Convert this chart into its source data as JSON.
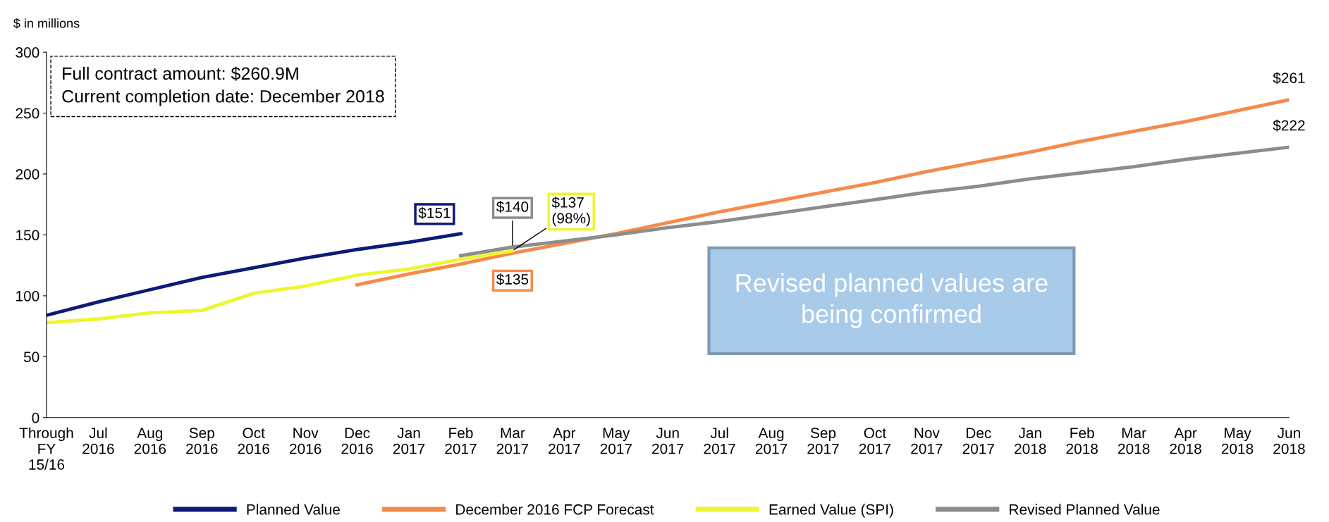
{
  "chart_data": {
    "type": "line",
    "ylabel": "$ in millions",
    "categories": [
      "Through\nFY\n15/16",
      "Jul\n2016",
      "Aug\n2016",
      "Sep\n2016",
      "Oct\n2016",
      "Nov\n2016",
      "Dec\n2016",
      "Jan\n2017",
      "Feb\n2017",
      "Mar\n2017",
      "Apr\n2017",
      "May\n2017",
      "Jun\n2017",
      "Jul\n2017",
      "Aug\n2017",
      "Sep\n2017",
      "Oct\n2017",
      "Nov\n2017",
      "Dec\n2017",
      "Jan\n2018",
      "Feb\n2018",
      "Mar\n2018",
      "Apr\n2018",
      "May\n2018",
      "Jun\n2018"
    ],
    "series": [
      {
        "name": "Planned Value",
        "color": "#0d1a78",
        "values": [
          84,
          95,
          105,
          115,
          123,
          131,
          138,
          144,
          151,
          null,
          null,
          null,
          null,
          null,
          null,
          null,
          null,
          null,
          null,
          null,
          null,
          null,
          null,
          null,
          null
        ],
        "value_labels": [
          null,
          null,
          null,
          null,
          null,
          null,
          null,
          null,
          "$151",
          null,
          null,
          null,
          null,
          null,
          null,
          null,
          null,
          null,
          null,
          null,
          null,
          null,
          null,
          null,
          null
        ]
      },
      {
        "name": "December 2016 FCP Forecast",
        "color": "#f58a4b",
        "values": [
          null,
          null,
          null,
          null,
          null,
          null,
          109,
          118,
          126,
          135,
          143,
          151,
          160,
          169,
          177,
          185,
          193,
          202,
          210,
          218,
          227,
          235,
          243,
          252,
          261
        ],
        "value_labels": [
          null,
          null,
          null,
          null,
          null,
          null,
          null,
          null,
          null,
          "$135",
          null,
          null,
          null,
          null,
          null,
          null,
          null,
          null,
          null,
          null,
          null,
          null,
          null,
          null,
          "$261"
        ]
      },
      {
        "name": "Earned Value (SPI)",
        "color": "#eef531",
        "values": [
          78,
          81,
          86,
          88,
          102,
          108,
          117,
          122,
          130,
          137,
          null,
          null,
          null,
          null,
          null,
          null,
          null,
          null,
          null,
          null,
          null,
          null,
          null,
          null,
          null
        ],
        "value_labels": [
          null,
          null,
          null,
          null,
          null,
          null,
          null,
          null,
          null,
          "$137\n(98%)",
          null,
          null,
          null,
          null,
          null,
          null,
          null,
          null,
          null,
          null,
          null,
          null,
          null,
          null,
          null
        ]
      },
      {
        "name": "Revised Planned Value",
        "color": "#8c8c8c",
        "values": [
          null,
          null,
          null,
          null,
          null,
          null,
          null,
          null,
          133,
          140,
          145,
          150,
          156,
          161,
          167,
          173,
          179,
          185,
          190,
          196,
          201,
          206,
          212,
          217,
          222
        ],
        "value_labels": [
          null,
          null,
          null,
          null,
          null,
          null,
          null,
          null,
          null,
          "$140",
          null,
          null,
          null,
          null,
          null,
          null,
          null,
          null,
          null,
          null,
          null,
          null,
          null,
          null,
          "$222"
        ]
      }
    ],
    "ylim": [
      0,
      300
    ],
    "yticks": [
      0,
      50,
      100,
      150,
      200,
      250,
      300
    ],
    "grid": false,
    "legend": "bottom",
    "marker": "none",
    "line_style": "solid",
    "annotations": [
      "Full contract amount: $260.9M\nCurrent completion date: December 2018",
      "Revised planned values are\nbeing confirmed"
    ]
  }
}
